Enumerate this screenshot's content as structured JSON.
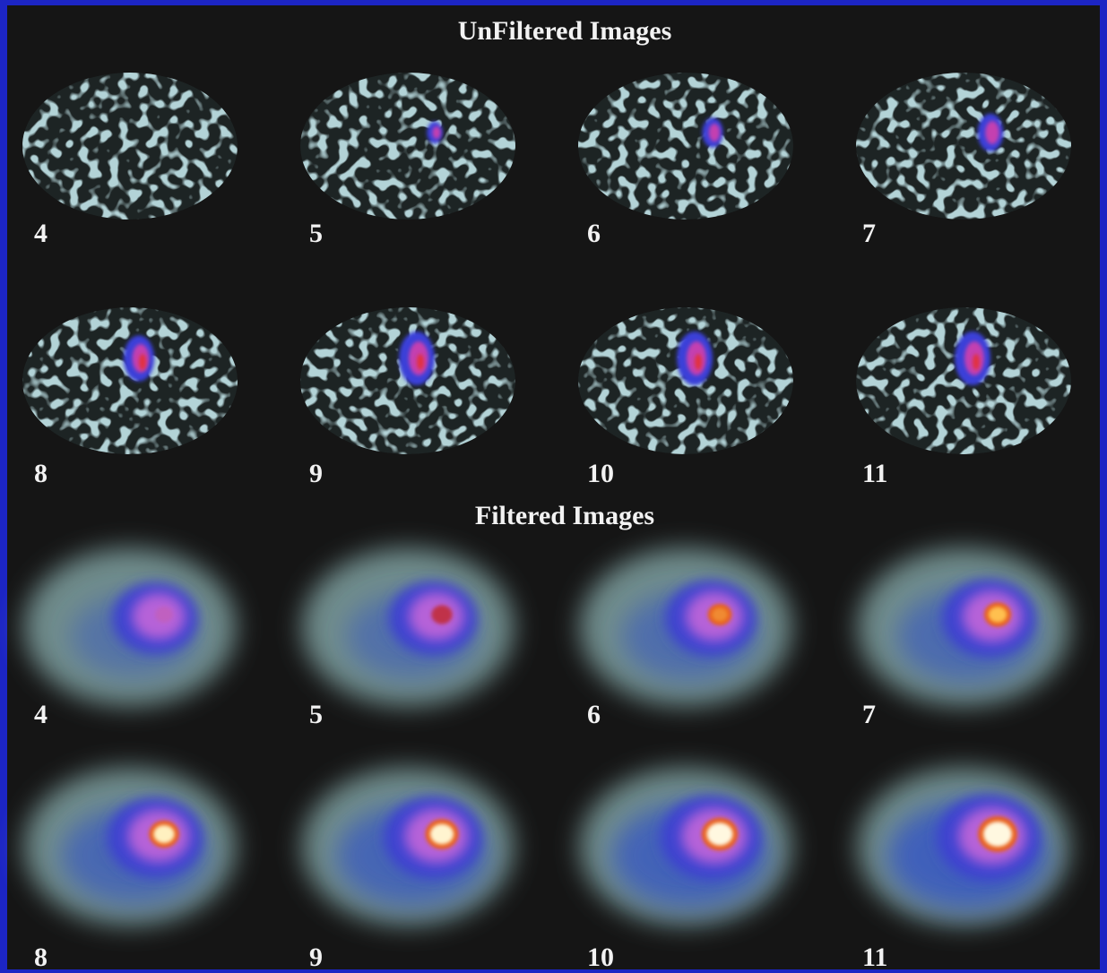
{
  "unfiltered": {
    "title": "UnFiltered Images",
    "labels": [
      4,
      5,
      6,
      7,
      8,
      9,
      10,
      11
    ]
  },
  "filtered": {
    "title": "Filtered Images",
    "labels": [
      4,
      5,
      6,
      7,
      8,
      9,
      10,
      11
    ]
  }
}
